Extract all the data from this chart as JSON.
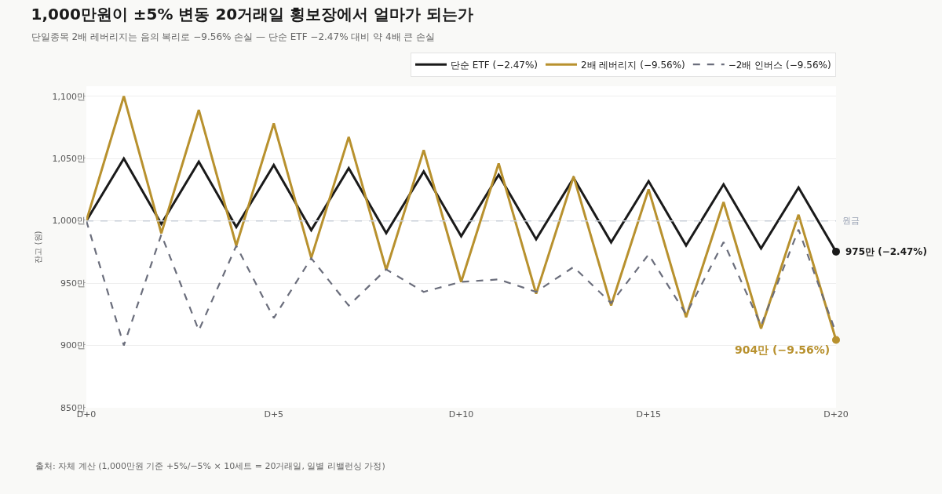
{
  "chart_data": {
    "type": "line",
    "title": "1,000만원이 ±5% 변동 20거래일 횡보장에서 얼마가 되는가",
    "subtitle": "단일종목 2배 레버리지는 음의 복리로 −9.56% 손실 — 단순 ETF −2.47% 대비 약 4배 큰 손실",
    "ylabel": "잔고 (원)",
    "categories": [
      "D+0",
      null,
      null,
      null,
      null,
      "D+5",
      null,
      null,
      null,
      null,
      "D+10",
      null,
      null,
      null,
      null,
      "D+15",
      null,
      null,
      null,
      null,
      "D+20"
    ],
    "ylim": [
      850,
      1108
    ],
    "yticks": [
      {
        "value": 850,
        "label": "850만"
      },
      {
        "value": 900,
        "label": "900만"
      },
      {
        "value": 950,
        "label": "950만"
      },
      {
        "value": 1000,
        "label": "1,000만"
      },
      {
        "value": 1050,
        "label": "1,050만"
      },
      {
        "value": 1100,
        "label": "1,100만"
      }
    ],
    "series": [
      {
        "name": "단순 ETF (−2.47%)",
        "color": "#1a1a1a",
        "line_style": "solid",
        "values": [
          1000,
          1050,
          997.5,
          1047.4,
          995.0,
          1044.8,
          992.5,
          1042.2,
          990.1,
          1039.6,
          987.6,
          1037.0,
          985.2,
          1034.4,
          982.7,
          1031.8,
          980.2,
          1029.3,
          977.8,
          1026.7,
          975.3
        ]
      },
      {
        "name": "2배 레버리지 (−9.56%)",
        "color": "#b8912e",
        "line_style": "solid",
        "values": [
          1000,
          1100,
          990,
          1089,
          980.1,
          1078.1,
          970.3,
          1067.3,
          960.6,
          1056.7,
          951.0,
          1046.1,
          941.5,
          1035.6,
          932.1,
          1025.3,
          922.7,
          1015.0,
          913.5,
          1004.9,
          904.4
        ]
      },
      {
        "name": "−2배 인버스 (−9.56%)",
        "color": "#6b6e7c",
        "line_style": "dashed",
        "values": [
          1000,
          900,
          989,
          912,
          980,
          922,
          970,
          932,
          961,
          943,
          951,
          953,
          943,
          963,
          934,
          973,
          925,
          983,
          916,
          993,
          910
        ]
      }
    ],
    "ref_lines": [
      {
        "axis": "y",
        "value": 1000,
        "label": "원금",
        "color": "#c9cfd8",
        "line_style": "dashed"
      }
    ],
    "annotations": [
      {
        "text": "975만 (−2.47%)",
        "x": "D+20",
        "y": 975.3
      },
      {
        "text": "904만 (−9.56%)",
        "x": "D+20",
        "y": 904.4
      },
      "출처: 자체 계산 (1,000만원 기준 +5%/−5% × 10세트 = 20거래일, 일별 리밸런싱 가정)"
    ],
    "grid": "y",
    "legend": "top right",
    "marker": "none"
  }
}
